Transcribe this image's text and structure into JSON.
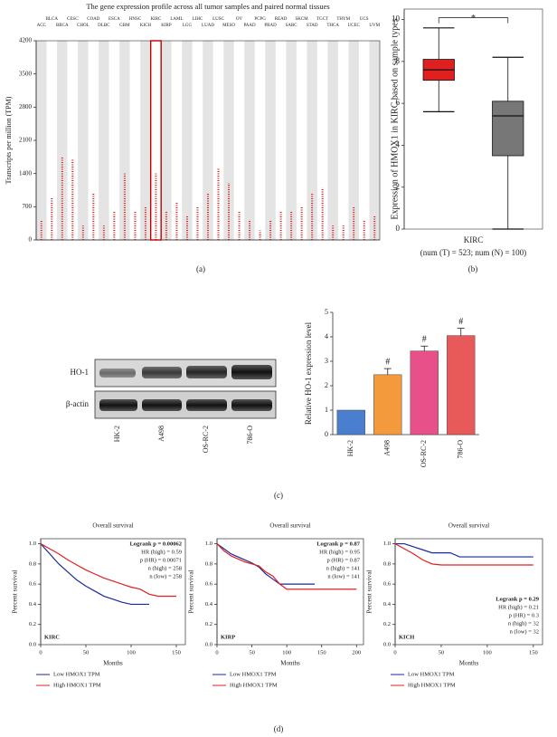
{
  "panel_labels": [
    "(a)",
    "(b)",
    "(c)",
    "(d)"
  ],
  "blot": {
    "rows": [
      "HO-1",
      "β-actin"
    ],
    "lanes": [
      "HK-2",
      "A498",
      "OS-RC-2",
      "786-O"
    ]
  },
  "chart_data": [
    {
      "type": "strip",
      "title": "The gene expression profile across all tumor samples and paired normal tissues",
      "y_label": "Transcripts per million (TPM)",
      "categories": [
        "ACC",
        "BLCA",
        "BRCA",
        "CESC",
        "CHOL",
        "COAD",
        "DLBC",
        "ESCA",
        "GBM",
        "HNSC",
        "KICH",
        "KIRC",
        "KIRP",
        "LAML",
        "LGG",
        "LIHC",
        "LUAD",
        "LUSC",
        "MESO",
        "OV",
        "PAAD",
        "PCPG",
        "PRAD",
        "READ",
        "SARC",
        "SKCM",
        "STAD",
        "TGCT",
        "THCA",
        "THYM",
        "UCEC",
        "UCS",
        "UVM"
      ],
      "label_colors": [
        "#222",
        "#222",
        "#222",
        "#222",
        "#222",
        "#222",
        "#222",
        "#222",
        "#d62020",
        "#222",
        "#222",
        "#d62020",
        "#222",
        "#222",
        "#d62020",
        "#222",
        "#222",
        "#2a9a2a",
        "#222",
        "#2a9a2a",
        "#d62020",
        "#222",
        "#222",
        "#222",
        "#222",
        "#222",
        "#d62020",
        "#d62020",
        "#222",
        "#2a9a2a",
        "#222",
        "#d62020",
        "#222"
      ],
      "values": [
        400,
        900,
        1750,
        1700,
        300,
        1000,
        300,
        600,
        1400,
        600,
        700,
        1400,
        600,
        800,
        500,
        700,
        1000,
        1500,
        1200,
        600,
        400,
        200,
        400,
        600,
        600,
        700,
        1000,
        1100,
        300,
        300,
        700,
        400,
        500
      ],
      "color": "#d62020",
      "highlight": "KIRC",
      "ylim": [
        0,
        4200
      ],
      "yticks": [
        0,
        700,
        1400,
        2100,
        2800,
        3500,
        4200
      ]
    },
    {
      "type": "box",
      "y_label": "Expression of HMOX1 in KIRC based on sample types",
      "categories": [
        "KIRC"
      ],
      "x_label": "(num (T) = 523; num (N) = 100)",
      "annotation": "*",
      "boxes": [
        {
          "whisker_low": 5.6,
          "q1": 7.1,
          "median": 7.6,
          "q3": 8.1,
          "whisker_high": 9.6,
          "color": "#e02020"
        },
        {
          "whisker_low": 0,
          "q1": 3.5,
          "median": 5.4,
          "q3": 6.1,
          "whisker_high": 8.2,
          "color": "#777777"
        }
      ],
      "ylim": [
        0,
        10.5
      ],
      "yticks": [
        0,
        2,
        4,
        6,
        8,
        10
      ]
    },
    {
      "type": "bar",
      "y_label": "Relative HO-1 expression level",
      "categories": [
        "HK-2",
        "A498",
        "OS-RC-2",
        "786-O"
      ],
      "values": [
        1.0,
        2.45,
        3.42,
        4.05
      ],
      "errors": [
        0,
        0.25,
        0.2,
        0.3
      ],
      "colors": [
        "#4a7fd0",
        "#f39a3c",
        "#e8508a",
        "#e85a5a"
      ],
      "value_annotations": [
        null,
        "#",
        "#",
        "#"
      ],
      "ylim": [
        0,
        5
      ],
      "yticks": [
        0,
        1,
        2,
        3,
        4,
        5
      ]
    },
    {
      "type": "survival",
      "title": "Overall survival",
      "x_label": "Months",
      "y_label": "Percent survival",
      "label": "KIRC",
      "stats": [
        "Logrank p = 0.00062",
        "HR (high) = 0.59",
        "p (HR) = 0.00071",
        "n (high) = 258",
        "n (low) = 258"
      ],
      "stats_corner": "top-right",
      "x": [
        0,
        10,
        20,
        30,
        40,
        50,
        60,
        70,
        80,
        90,
        100,
        110,
        120,
        130,
        150
      ],
      "series": [
        {
          "name": "Low HMOX1 TPM",
          "color": "#1a2a9a",
          "values": [
            1,
            0.9,
            0.8,
            0.72,
            0.64,
            0.58,
            0.53,
            0.48,
            0.45,
            0.42,
            0.4,
            0.4,
            0.4,
            null,
            null
          ]
        },
        {
          "name": "High HMOX1 TPM",
          "color": "#e02020",
          "values": [
            1,
            0.95,
            0.9,
            0.84,
            0.79,
            0.74,
            0.7,
            0.66,
            0.63,
            0.6,
            0.57,
            0.55,
            0.5,
            0.48,
            0.48
          ]
        }
      ],
      "xlim": [
        0,
        160
      ],
      "xticks": [
        0,
        50,
        100,
        150
      ],
      "ylim": [
        0,
        1.05
      ],
      "yticks": [
        {
          "value": 0,
          "label": "0.0"
        },
        0.2,
        0.4,
        0.6,
        0.8,
        {
          "value": 1,
          "label": "1.0"
        }
      ]
    },
    {
      "type": "survival",
      "title": "Overall survival",
      "x_label": "Months",
      "y_label": "Percent survival",
      "label": "KIRP",
      "stats": [
        "Logrank p = 0.87",
        "HR (high) = 0.95",
        "p (HR) = 0.87",
        "n (high) = 141",
        "n (low) = 141"
      ],
      "stats_corner": "top-right",
      "x": [
        0,
        10,
        20,
        30,
        40,
        50,
        60,
        70,
        80,
        90,
        100,
        120,
        140,
        160,
        200
      ],
      "series": [
        {
          "name": "Low HMOX1 TPM",
          "color": "#1a2a9a",
          "values": [
            1,
            0.95,
            0.9,
            0.87,
            0.84,
            0.81,
            0.77,
            0.7,
            0.65,
            0.6,
            0.6,
            0.6,
            0.6,
            null,
            null
          ]
        },
        {
          "name": "High HMOX1 TPM",
          "color": "#e02020",
          "values": [
            1,
            0.93,
            0.88,
            0.85,
            0.82,
            0.8,
            0.78,
            0.72,
            0.68,
            0.6,
            0.55,
            0.55,
            0.55,
            0.55,
            0.55
          ]
        }
      ],
      "xlim": [
        0,
        210
      ],
      "xticks": [
        0,
        50,
        100,
        150,
        200
      ],
      "ylim": [
        0,
        1.05
      ],
      "yticks": [
        {
          "value": 0,
          "label": "0.0"
        },
        0.2,
        0.4,
        0.6,
        0.8,
        {
          "value": 1,
          "label": "1.0"
        }
      ]
    },
    {
      "type": "survival",
      "title": "Overall survival",
      "x_label": "Months",
      "y_label": "Percent survival",
      "label": "KICH",
      "stats": [
        "Logrank p = 0.29",
        "HR (high) = 0.21",
        "p (HR) = 0.3",
        "n (high) = 32",
        "n (low) = 32"
      ],
      "stats_corner": "bottom-right",
      "x": [
        0,
        10,
        20,
        30,
        40,
        50,
        60,
        70,
        80,
        100,
        120,
        150
      ],
      "series": [
        {
          "name": "Low HMOX1 TPM",
          "color": "#1a2a9a",
          "values": [
            1,
            1,
            0.97,
            0.94,
            0.91,
            0.91,
            0.91,
            0.87,
            0.87,
            0.87,
            0.87,
            0.87
          ]
        },
        {
          "name": "High HMOX1 TPM",
          "color": "#e02020",
          "values": [
            1,
            0.95,
            0.9,
            0.84,
            0.8,
            0.79,
            0.79,
            0.79,
            0.79,
            0.79,
            0.79,
            0.79
          ]
        }
      ],
      "xlim": [
        0,
        160
      ],
      "xticks": [
        0,
        50,
        100,
        150
      ],
      "ylim": [
        0,
        1.05
      ],
      "yticks": [
        {
          "value": 0,
          "label": "0.0"
        },
        0.2,
        0.4,
        0.6,
        0.8,
        {
          "value": 1,
          "label": "1.0"
        }
      ]
    }
  ]
}
